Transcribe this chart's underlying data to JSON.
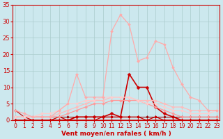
{
  "x": [
    0,
    1,
    2,
    3,
    4,
    5,
    6,
    7,
    8,
    9,
    10,
    11,
    12,
    13,
    14,
    15,
    16,
    17,
    18,
    19,
    20,
    21,
    22,
    23
  ],
  "series": [
    {
      "y": [
        3,
        1,
        0,
        0,
        0,
        1,
        0,
        0,
        0,
        0,
        0,
        0,
        0,
        0,
        0,
        0,
        0,
        0,
        0,
        0,
        0,
        0,
        0,
        0
      ],
      "color": "#cc0000",
      "lw": 0.8,
      "marker": "D",
      "ms": 2.0
    },
    {
      "y": [
        1,
        1,
        1,
        1,
        1,
        1,
        1,
        1,
        1,
        1,
        1,
        1,
        1,
        1,
        1,
        1,
        1,
        1,
        1,
        1,
        1,
        1,
        1,
        1
      ],
      "color": "#990000",
      "lw": 0.8,
      "marker": "D",
      "ms": 2.0
    },
    {
      "y": [
        0,
        0,
        0,
        0,
        0,
        0,
        0,
        0,
        0,
        0,
        1,
        1,
        1,
        1,
        1,
        0,
        1,
        0,
        0,
        0,
        0,
        0,
        0,
        0
      ],
      "color": "#cc0000",
      "lw": 0.8,
      "marker": "D",
      "ms": 2.0
    },
    {
      "y": [
        0,
        0,
        0,
        0,
        0,
        0,
        0,
        1,
        1,
        1,
        1,
        2,
        1,
        14,
        10,
        10,
        4,
        2,
        1,
        0,
        0,
        0,
        0,
        0
      ],
      "color": "#cc0000",
      "lw": 1.2,
      "marker": "D",
      "ms": 2.5
    },
    {
      "y": [
        1,
        1,
        1,
        1,
        1,
        1,
        2,
        3,
        4,
        5,
        5,
        6,
        6,
        6,
        6,
        5,
        4,
        3,
        2,
        1,
        1,
        1,
        1,
        1
      ],
      "color": "#ff9999",
      "lw": 0.9,
      "marker": "D",
      "ms": 2.0
    },
    {
      "y": [
        1,
        1,
        1,
        1,
        1,
        2,
        3,
        4,
        5,
        6,
        6,
        7,
        7,
        7,
        6,
        6,
        6,
        5,
        4,
        4,
        3,
        3,
        3,
        3
      ],
      "color": "#ffbbbb",
      "lw": 0.9,
      "marker": "D",
      "ms": 2.0
    },
    {
      "y": [
        1,
        1,
        1,
        2,
        2,
        3,
        5,
        5,
        6,
        6,
        7,
        7,
        7,
        7,
        6,
        5,
        5,
        4,
        3,
        3,
        2,
        2,
        2,
        3
      ],
      "color": "#ffcccc",
      "lw": 0.9,
      "marker": "D",
      "ms": 2.0
    },
    {
      "y": [
        3,
        2,
        1,
        1,
        1,
        3,
        5,
        14,
        7,
        7,
        7,
        27,
        32,
        29,
        18,
        19,
        24,
        23,
        16,
        11,
        7,
        6,
        3,
        3
      ],
      "color": "#ffaaaa",
      "lw": 0.9,
      "marker": "D",
      "ms": 2.0
    }
  ],
  "xlim": [
    -0.3,
    23.3
  ],
  "ylim": [
    0,
    35
  ],
  "yticks": [
    0,
    5,
    10,
    15,
    20,
    25,
    30,
    35
  ],
  "xticks": [
    0,
    1,
    2,
    3,
    4,
    5,
    6,
    7,
    8,
    9,
    10,
    11,
    12,
    13,
    14,
    15,
    16,
    17,
    18,
    19,
    20,
    21,
    22,
    23
  ],
  "xlabel": "Vent moyen/en rafales ( km/h )",
  "bg_color": "#cce8ee",
  "grid_color": "#aacccc",
  "tick_color": "#cc0000",
  "label_color": "#cc0000"
}
